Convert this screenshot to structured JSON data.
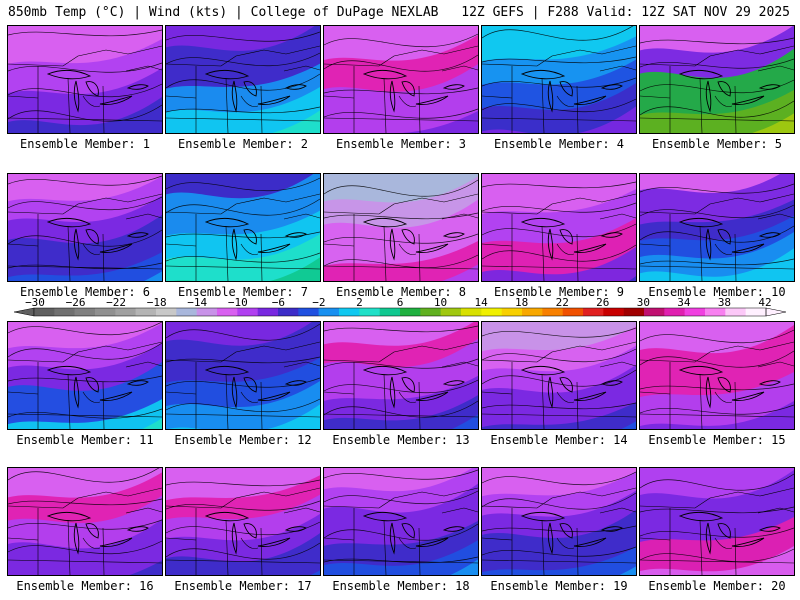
{
  "header": {
    "left": "850mb Temp (°C) | Wind (kts) | College of DuPage NEXLAB",
    "right": "12Z GEFS | F288 Valid: 12Z SAT NOV 29 2025"
  },
  "colorbar": {
    "labels": [
      "-30",
      "-26",
      "-22",
      "-18",
      "-14",
      "-10",
      "-6",
      "-2",
      "2",
      "6",
      "10",
      "14",
      "18",
      "22",
      "26",
      "30",
      "34",
      "38",
      "42"
    ],
    "colors": [
      "#606060",
      "#707070",
      "#808080",
      "#909090",
      "#a0a0a0",
      "#b4b4b4",
      "#c8c8c8",
      "#a9b7dc",
      "#c892e8",
      "#d860f0",
      "#b040f0",
      "#7828e0",
      "#3c2cc8",
      "#2050e0",
      "#1890f0",
      "#10c8f0",
      "#20e0c8",
      "#10c890",
      "#20b040",
      "#60b020",
      "#a0c810",
      "#d8e000",
      "#f0f000",
      "#f8d000",
      "#f8a800",
      "#f88000",
      "#f05000",
      "#e02020",
      "#c80000",
      "#a00000",
      "#c01070",
      "#e020b0",
      "#f040e0",
      "#f880f0",
      "#fcc8f8",
      "#fff0ff"
    ]
  },
  "panels": [
    {
      "caption": "Ensemble Member: 1",
      "palette": [
        "#d860f0",
        "#b040f0",
        "#7828e0",
        "#3c2cc8",
        "#b040f0"
      ]
    },
    {
      "caption": "Ensemble Member: 2",
      "palette": [
        "#7828e0",
        "#3c2cc8",
        "#1890f0",
        "#10c8f0",
        "#20e0c8",
        "#10c890"
      ]
    },
    {
      "caption": "Ensemble Member: 3",
      "palette": [
        "#d860f0",
        "#e020b0",
        "#b040f0",
        "#7828e0",
        "#3c2cc8"
      ]
    },
    {
      "caption": "Ensemble Member: 4",
      "palette": [
        "#10c8f0",
        "#1890f0",
        "#2050e0",
        "#3c2cc8",
        "#7828e0",
        "#b040f0"
      ]
    },
    {
      "caption": "Ensemble Member: 5",
      "palette": [
        "#d860f0",
        "#7828e0",
        "#20b040",
        "#60b020",
        "#a0c810",
        "#10c8f0"
      ]
    },
    {
      "caption": "Ensemble Member: 6",
      "palette": [
        "#d860f0",
        "#b040f0",
        "#7828e0",
        "#3c2cc8",
        "#2050e0",
        "#1890f0",
        "#10c8f0"
      ]
    },
    {
      "caption": "Ensemble Member: 7",
      "palette": [
        "#3c2cc8",
        "#1890f0",
        "#10c8f0",
        "#20e0c8",
        "#10c890",
        "#60b020"
      ]
    },
    {
      "caption": "Ensemble Member: 8",
      "palette": [
        "#a9b7dc",
        "#c892e8",
        "#d860f0",
        "#e020b0",
        "#b040f0",
        "#7828e0"
      ]
    },
    {
      "caption": "Ensemble Member: 9",
      "palette": [
        "#d860f0",
        "#b040f0",
        "#e020b0",
        "#7828e0",
        "#3c2cc8"
      ]
    },
    {
      "caption": "Ensemble Member: 10",
      "palette": [
        "#d860f0",
        "#7828e0",
        "#3c2cc8",
        "#2050e0",
        "#1890f0",
        "#10c8f0",
        "#20e0c8",
        "#10c890"
      ]
    },
    {
      "caption": "Ensemble Member: 11",
      "palette": [
        "#d860f0",
        "#b040f0",
        "#7828e0",
        "#2050e0",
        "#10c8f0",
        "#20e0c8",
        "#10c890"
      ]
    },
    {
      "caption": "Ensemble Member: 12",
      "palette": [
        "#7828e0",
        "#3c2cc8",
        "#2050e0",
        "#1890f0",
        "#10c8f0",
        "#20e0c8"
      ]
    },
    {
      "caption": "Ensemble Member: 13",
      "palette": [
        "#d860f0",
        "#e020b0",
        "#b040f0",
        "#7828e0",
        "#3c2cc8",
        "#2050e0",
        "#10c8f0"
      ]
    },
    {
      "caption": "Ensemble Member: 14",
      "palette": [
        "#c892e8",
        "#d860f0",
        "#b040f0",
        "#7828e0",
        "#3c2cc8",
        "#2050e0",
        "#1890f0"
      ]
    },
    {
      "caption": "Ensemble Member: 15",
      "palette": [
        "#d860f0",
        "#e020b0",
        "#b040f0",
        "#7828e0",
        "#3c2cc8"
      ]
    },
    {
      "caption": "Ensemble Member: 16",
      "palette": [
        "#d860f0",
        "#e020b0",
        "#b040f0",
        "#7828e0",
        "#3c2cc8",
        "#2050e0"
      ]
    },
    {
      "caption": "Ensemble Member: 17",
      "palette": [
        "#d860f0",
        "#e020b0",
        "#b040f0",
        "#7828e0",
        "#3c2cc8",
        "#2050e0",
        "#10c8f0"
      ]
    },
    {
      "caption": "Ensemble Member: 18",
      "palette": [
        "#d860f0",
        "#b040f0",
        "#7828e0",
        "#3c2cc8",
        "#2050e0",
        "#1890f0",
        "#10c8f0"
      ]
    },
    {
      "caption": "Ensemble Member: 19",
      "palette": [
        "#d860f0",
        "#b040f0",
        "#7828e0",
        "#3c2cc8",
        "#2050e0",
        "#1890f0",
        "#10c8f0"
      ]
    },
    {
      "caption": "Ensemble Member: 20",
      "palette": [
        "#b040f0",
        "#7828e0",
        "#e020b0",
        "#d860f0",
        "#b040f0"
      ]
    }
  ]
}
